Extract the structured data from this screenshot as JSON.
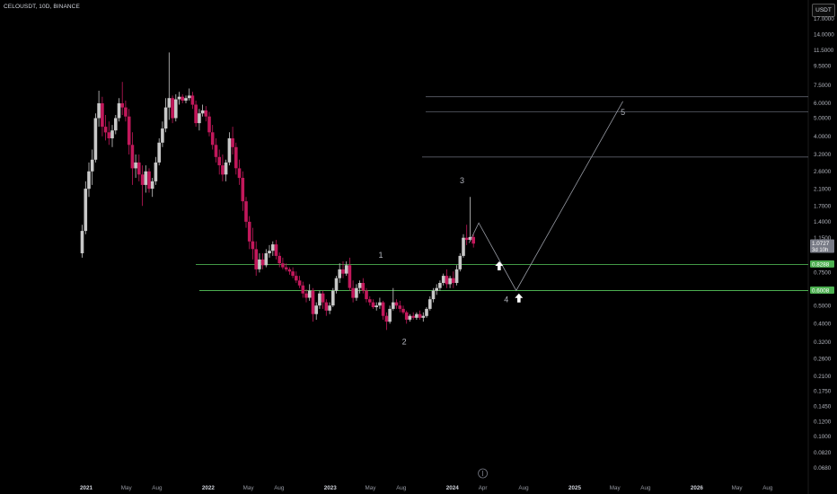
{
  "header": {
    "symbol": "CELOUSDT, 10D, BINANCE",
    "currency": "USDT"
  },
  "chart_data": {
    "type": "candlestick",
    "y_scale": "log",
    "y_ticks": [
      "17.0000",
      "14.0000",
      "11.5000",
      "9.5000",
      "7.5000",
      "6.0000",
      "5.0000",
      "4.0000",
      "3.2000",
      "2.6000",
      "2.1000",
      "1.7000",
      "1.4000",
      "1.1500",
      "0.7500",
      "0.6000",
      "0.5000",
      "0.4000",
      "0.3200",
      "0.2600",
      "0.2100",
      "0.1750",
      "0.1450",
      "0.1200",
      "0.1000",
      "0.0820",
      "0.0680"
    ],
    "x_ticks": [
      {
        "label": "2021",
        "bold": true
      },
      {
        "label": "May",
        "bold": false
      },
      {
        "label": "Aug",
        "bold": false
      },
      {
        "label": "2022",
        "bold": true
      },
      {
        "label": "May",
        "bold": false
      },
      {
        "label": "Aug",
        "bold": false
      },
      {
        "label": "2023",
        "bold": true
      },
      {
        "label": "May",
        "bold": false
      },
      {
        "label": "Aug",
        "bold": false
      },
      {
        "label": "2024",
        "bold": true
      },
      {
        "label": "Apr",
        "bold": false
      },
      {
        "label": "Aug",
        "bold": false
      },
      {
        "label": "2025",
        "bold": true
      },
      {
        "label": "May",
        "bold": false
      },
      {
        "label": "Aug",
        "bold": false
      },
      {
        "label": "2026",
        "bold": true
      },
      {
        "label": "May",
        "bold": false
      },
      {
        "label": "Aug",
        "bold": false
      }
    ],
    "price_labels": [
      {
        "text": "1.0727",
        "sub": "3d 10h",
        "color": "#787b86"
      },
      {
        "text": "0.8288",
        "sub": "",
        "color": "#4caf50"
      },
      {
        "text": "0.6008",
        "sub": "",
        "color": "#4caf50"
      }
    ],
    "support_levels": [
      0.8288,
      0.6008
    ],
    "target_levels": [
      6.5,
      5.4,
      3.1
    ],
    "wave_labels": [
      "1",
      "2",
      "3",
      "4",
      "5"
    ],
    "projection_path": [
      {
        "date": "2024-02-20",
        "price": 1.08
      },
      {
        "date": "2024-03-20",
        "price": 1.38
      },
      {
        "date": "2024-07-10",
        "price": 0.6008
      },
      {
        "date": "2025-05-25",
        "price": 6.15
      }
    ],
    "candles": [
      [
        "2020-12-20",
        0.95,
        1.35,
        0.9,
        1.25
      ],
      [
        "2020-12-30",
        1.25,
        2.3,
        1.2,
        2.1
      ],
      [
        "2021-01-09",
        2.1,
        2.9,
        1.9,
        2.6
      ],
      [
        "2021-01-19",
        2.6,
        3.4,
        2.2,
        3.0
      ],
      [
        "2021-01-29",
        3.0,
        5.3,
        2.9,
        5.0
      ],
      [
        "2021-02-08",
        5.0,
        7.0,
        4.5,
        6.0
      ],
      [
        "2021-02-18",
        6.0,
        6.5,
        4.0,
        4.5
      ],
      [
        "2021-02-28",
        4.5,
        5.2,
        3.8,
        4.2
      ],
      [
        "2021-03-10",
        4.2,
        4.8,
        3.6,
        3.9
      ],
      [
        "2021-03-20",
        3.9,
        4.6,
        3.5,
        4.3
      ],
      [
        "2021-03-30",
        4.3,
        5.2,
        4.1,
        5.0
      ],
      [
        "2021-04-09",
        5.0,
        6.4,
        4.8,
        6.0
      ],
      [
        "2021-04-19",
        6.0,
        7.8,
        5.2,
        5.7
      ],
      [
        "2021-04-29",
        5.7,
        6.2,
        4.8,
        5.1
      ],
      [
        "2021-05-09",
        5.1,
        5.6,
        3.2,
        3.6
      ],
      [
        "2021-05-19",
        3.6,
        4.2,
        2.2,
        2.7
      ],
      [
        "2021-05-29",
        2.7,
        3.2,
        2.4,
        2.9
      ],
      [
        "2021-06-08",
        2.9,
        3.2,
        2.3,
        2.5
      ],
      [
        "2021-06-18",
        2.5,
        2.8,
        1.7,
        2.2
      ],
      [
        "2021-06-28",
        2.2,
        2.8,
        2.0,
        2.6
      ],
      [
        "2021-07-08",
        2.6,
        2.7,
        2.0,
        2.1
      ],
      [
        "2021-07-18",
        2.1,
        2.4,
        1.9,
        2.3
      ],
      [
        "2021-07-28",
        2.3,
        3.1,
        2.2,
        2.9
      ],
      [
        "2021-08-07",
        2.9,
        3.9,
        2.8,
        3.7
      ],
      [
        "2021-08-17",
        3.7,
        4.8,
        3.5,
        4.4
      ],
      [
        "2021-08-27",
        4.4,
        6.4,
        4.2,
        5.7
      ],
      [
        "2021-09-06",
        5.7,
        11.2,
        4.9,
        6.4
      ],
      [
        "2021-09-16",
        6.4,
        6.6,
        4.7,
        5.0
      ],
      [
        "2021-09-26",
        5.0,
        6.7,
        4.8,
        6.3
      ],
      [
        "2021-10-06",
        6.3,
        6.9,
        5.9,
        6.5
      ],
      [
        "2021-10-16",
        6.5,
        6.7,
        6.0,
        6.2
      ],
      [
        "2021-10-26",
        6.2,
        6.6,
        6.0,
        6.4
      ],
      [
        "2021-11-05",
        6.4,
        7.2,
        6.2,
        6.6
      ],
      [
        "2021-11-15",
        6.6,
        6.9,
        5.6,
        5.9
      ],
      [
        "2021-11-25",
        5.9,
        6.2,
        4.5,
        4.7
      ],
      [
        "2021-12-05",
        4.7,
        5.6,
        4.3,
        5.3
      ],
      [
        "2021-12-15",
        5.3,
        5.9,
        5.1,
        5.5
      ],
      [
        "2021-12-25",
        5.5,
        5.8,
        4.8,
        5.1
      ],
      [
        "2022-01-04",
        5.1,
        5.4,
        4.0,
        4.2
      ],
      [
        "2022-01-14",
        4.2,
        4.6,
        3.4,
        3.6
      ],
      [
        "2022-01-24",
        3.6,
        3.9,
        2.9,
        3.1
      ],
      [
        "2022-02-03",
        3.1,
        3.4,
        2.5,
        2.8
      ],
      [
        "2022-02-13",
        2.8,
        3.2,
        2.3,
        2.5
      ],
      [
        "2022-02-23",
        2.5,
        3.0,
        2.3,
        2.9
      ],
      [
        "2022-03-05",
        2.9,
        4.2,
        2.8,
        3.9
      ],
      [
        "2022-03-15",
        3.9,
        4.5,
        3.2,
        3.5
      ],
      [
        "2022-03-25",
        3.5,
        3.7,
        2.5,
        2.7
      ],
      [
        "2022-04-04",
        2.7,
        3.0,
        2.2,
        2.4
      ],
      [
        "2022-04-14",
        2.4,
        2.6,
        1.6,
        1.8
      ],
      [
        "2022-04-24",
        1.8,
        1.9,
        1.3,
        1.4
      ],
      [
        "2022-05-04",
        1.4,
        1.5,
        1.0,
        1.1
      ],
      [
        "2022-05-14",
        1.1,
        1.3,
        0.88,
        1.0
      ],
      [
        "2022-05-24",
        1.0,
        1.1,
        0.72,
        0.78
      ],
      [
        "2022-06-03",
        0.78,
        0.95,
        0.75,
        0.88
      ],
      [
        "2022-06-13",
        0.88,
        0.95,
        0.78,
        0.82
      ],
      [
        "2022-06-23",
        0.82,
        1.0,
        0.8,
        0.95
      ],
      [
        "2022-07-03",
        0.95,
        1.05,
        0.9,
        0.98
      ],
      [
        "2022-07-13",
        0.98,
        1.1,
        0.92,
        1.06
      ],
      [
        "2022-07-23",
        1.06,
        1.12,
        0.88,
        0.92
      ],
      [
        "2022-08-02",
        0.92,
        0.96,
        0.8,
        0.84
      ],
      [
        "2022-08-12",
        0.84,
        0.9,
        0.78,
        0.8
      ],
      [
        "2022-08-22",
        0.8,
        0.84,
        0.76,
        0.78
      ],
      [
        "2022-09-01",
        0.78,
        0.8,
        0.73,
        0.76
      ],
      [
        "2022-09-11",
        0.76,
        0.8,
        0.7,
        0.72
      ],
      [
        "2022-09-21",
        0.72,
        0.76,
        0.66,
        0.68
      ],
      [
        "2022-10-01",
        0.68,
        0.72,
        0.62,
        0.64
      ],
      [
        "2022-10-11",
        0.64,
        0.67,
        0.55,
        0.58
      ],
      [
        "2022-10-21",
        0.58,
        0.61,
        0.52,
        0.55
      ],
      [
        "2022-10-31",
        0.55,
        0.65,
        0.53,
        0.6
      ],
      [
        "2022-11-10",
        0.6,
        0.62,
        0.41,
        0.45
      ],
      [
        "2022-11-20",
        0.45,
        0.52,
        0.42,
        0.5
      ],
      [
        "2022-11-30",
        0.5,
        0.6,
        0.48,
        0.58
      ],
      [
        "2022-12-10",
        0.58,
        0.6,
        0.48,
        0.52
      ],
      [
        "2022-12-20",
        0.52,
        0.54,
        0.44,
        0.47
      ],
      [
        "2022-12-30",
        0.47,
        0.52,
        0.45,
        0.5
      ],
      [
        "2023-01-09",
        0.5,
        0.62,
        0.49,
        0.6
      ],
      [
        "2023-01-19",
        0.6,
        0.72,
        0.58,
        0.7
      ],
      [
        "2023-01-29",
        0.7,
        0.84,
        0.66,
        0.78
      ],
      [
        "2023-02-08",
        0.78,
        0.86,
        0.7,
        0.74
      ],
      [
        "2023-02-18",
        0.74,
        0.86,
        0.72,
        0.82
      ],
      [
        "2023-02-28",
        0.82,
        0.9,
        0.6,
        0.62
      ],
      [
        "2023-03-10",
        0.62,
        0.68,
        0.52,
        0.55
      ],
      [
        "2023-03-20",
        0.55,
        0.65,
        0.53,
        0.62
      ],
      [
        "2023-03-30",
        0.62,
        0.68,
        0.58,
        0.66
      ],
      [
        "2023-04-09",
        0.66,
        0.7,
        0.58,
        0.6
      ],
      [
        "2023-04-19",
        0.6,
        0.62,
        0.52,
        0.54
      ],
      [
        "2023-04-29",
        0.54,
        0.56,
        0.5,
        0.52
      ],
      [
        "2023-05-09",
        0.52,
        0.54,
        0.48,
        0.49
      ],
      [
        "2023-05-19",
        0.49,
        0.52,
        0.47,
        0.5
      ],
      [
        "2023-05-29",
        0.5,
        0.55,
        0.48,
        0.52
      ],
      [
        "2023-06-08",
        0.52,
        0.53,
        0.42,
        0.44
      ],
      [
        "2023-06-18",
        0.44,
        0.46,
        0.37,
        0.41
      ],
      [
        "2023-06-28",
        0.41,
        0.5,
        0.4,
        0.48
      ],
      [
        "2023-07-08",
        0.48,
        0.62,
        0.47,
        0.52
      ],
      [
        "2023-07-18",
        0.52,
        0.54,
        0.48,
        0.5
      ],
      [
        "2023-07-28",
        0.5,
        0.53,
        0.46,
        0.48
      ],
      [
        "2023-08-07",
        0.48,
        0.5,
        0.45,
        0.46
      ],
      [
        "2023-08-17",
        0.46,
        0.47,
        0.4,
        0.42
      ],
      [
        "2023-08-27",
        0.42,
        0.45,
        0.41,
        0.44
      ],
      [
        "2023-09-06",
        0.44,
        0.46,
        0.42,
        0.43
      ],
      [
        "2023-09-16",
        0.43,
        0.46,
        0.42,
        0.45
      ],
      [
        "2023-09-26",
        0.45,
        0.47,
        0.42,
        0.43
      ],
      [
        "2023-10-06",
        0.43,
        0.46,
        0.41,
        0.44
      ],
      [
        "2023-10-16",
        0.44,
        0.49,
        0.43,
        0.48
      ],
      [
        "2023-10-26",
        0.48,
        0.56,
        0.47,
        0.54
      ],
      [
        "2023-11-05",
        0.54,
        0.62,
        0.52,
        0.6
      ],
      [
        "2023-11-15",
        0.6,
        0.65,
        0.57,
        0.62
      ],
      [
        "2023-11-25",
        0.62,
        0.68,
        0.6,
        0.66
      ],
      [
        "2023-12-05",
        0.66,
        0.74,
        0.64,
        0.72
      ],
      [
        "2023-12-15",
        0.72,
        0.78,
        0.62,
        0.65
      ],
      [
        "2023-12-25",
        0.65,
        0.72,
        0.62,
        0.7
      ],
      [
        "2024-01-04",
        0.7,
        0.76,
        0.62,
        0.66
      ],
      [
        "2024-01-14",
        0.66,
        0.82,
        0.64,
        0.78
      ],
      [
        "2024-01-24",
        0.78,
        0.95,
        0.76,
        0.92
      ],
      [
        "2024-02-03",
        0.92,
        1.2,
        0.9,
        1.15
      ],
      [
        "2024-02-13",
        1.15,
        1.35,
        1.05,
        1.12
      ],
      [
        "2024-02-23",
        1.12,
        1.9,
        1.1,
        1.16
      ],
      [
        "2024-03-04",
        1.16,
        1.2,
        1.02,
        1.07
      ]
    ]
  }
}
